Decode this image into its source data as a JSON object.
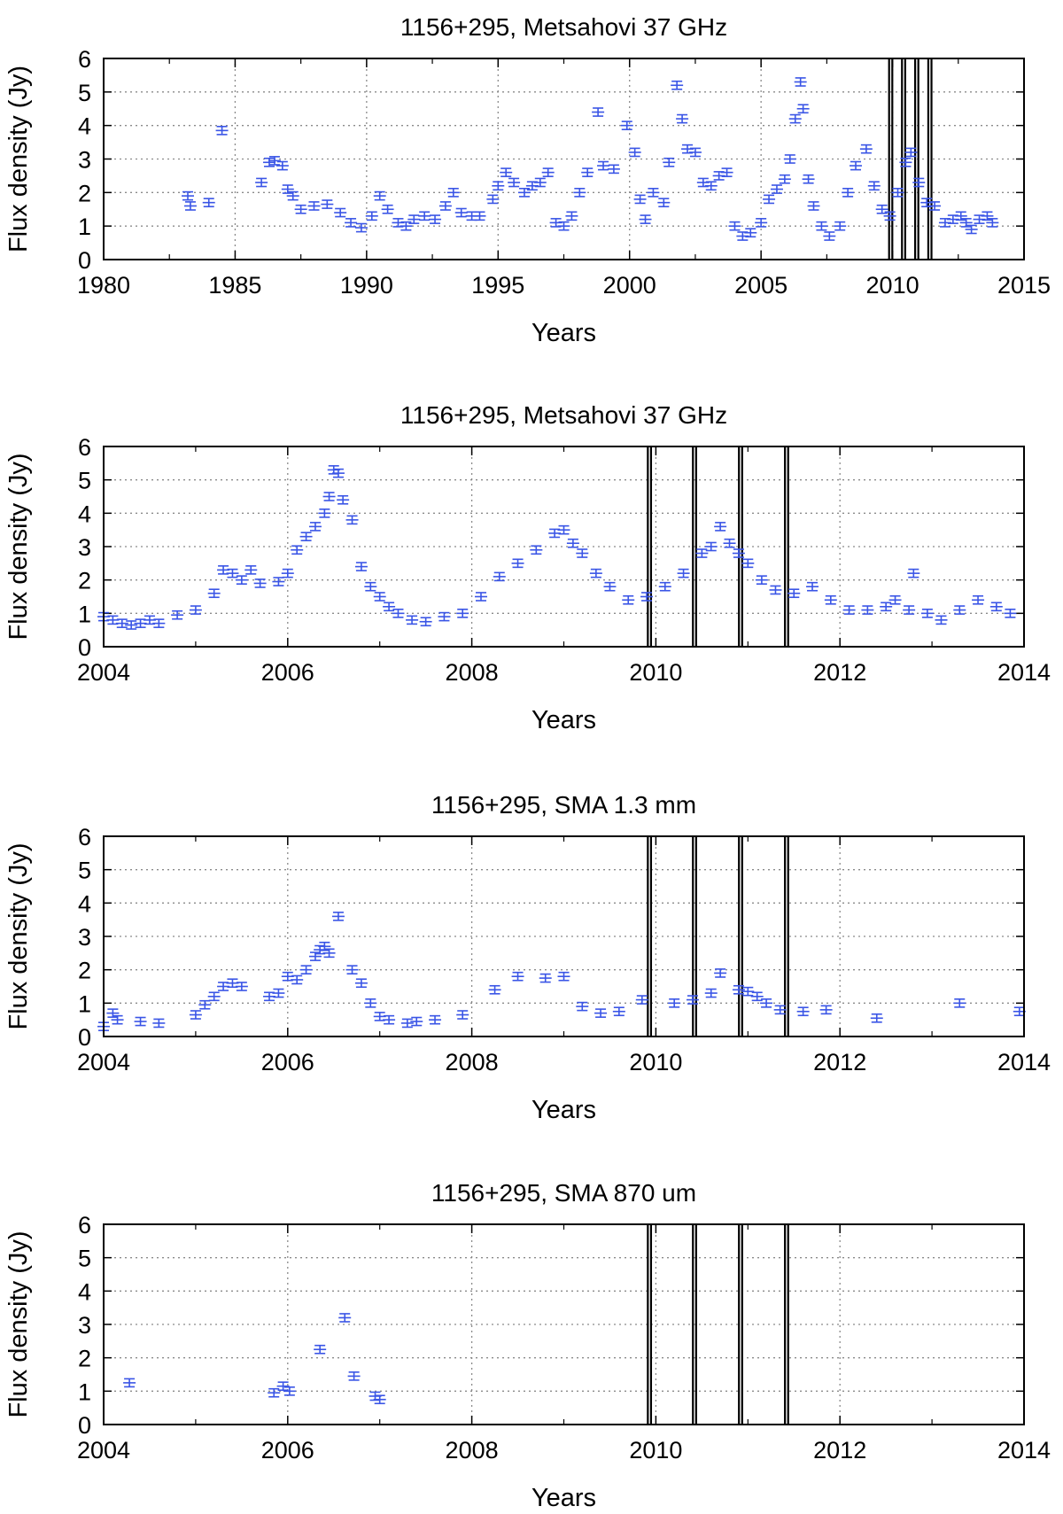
{
  "colors": {
    "data": "#3a55e6",
    "frame": "#000000",
    "grid": "#8a8a8a",
    "marker_lines": "#000000"
  },
  "chart_data": [
    {
      "type": "scatter",
      "title": "1156+295, Metsahovi 37 GHz",
      "xlabel": "Years",
      "ylabel": "Flux density (Jy)",
      "xlim": [
        1980,
        2015
      ],
      "ylim": [
        0,
        6
      ],
      "xticks": [
        "1980",
        "1985",
        "1990",
        "1995",
        "2000",
        "2005",
        "2010",
        "2015"
      ],
      "yticks": [
        "0",
        "1",
        "2",
        "3",
        "4",
        "5",
        "6"
      ],
      "grid": true,
      "error_bars": true,
      "marker_lines_x": [
        2009.93,
        2010.42,
        2010.92,
        2011.42
      ],
      "x": [
        1983.2,
        1983.3,
        1984.0,
        1984.5,
        1986.0,
        1986.3,
        1986.5,
        1986.8,
        1987.0,
        1987.2,
        1987.5,
        1988.0,
        1988.5,
        1989.0,
        1989.4,
        1989.8,
        1990.2,
        1990.5,
        1990.8,
        1991.2,
        1991.5,
        1991.8,
        1992.2,
        1992.6,
        1993.0,
        1993.3,
        1993.6,
        1994.0,
        1994.3,
        1994.8,
        1995.0,
        1995.3,
        1995.6,
        1996.0,
        1996.3,
        1996.6,
        1996.9,
        1997.2,
        1997.5,
        1997.8,
        1998.1,
        1998.4,
        1998.8,
        1999.0,
        1999.4,
        1999.9,
        2000.2,
        2000.4,
        2000.6,
        2000.9,
        2001.3,
        2001.5,
        2001.8,
        2002.0,
        2002.2,
        2002.5,
        2002.8,
        2003.1,
        2003.4,
        2003.7,
        2004.0,
        2004.3,
        2004.6,
        2005.0,
        2005.3,
        2005.6,
        2005.9,
        2006.1,
        2006.3,
        2006.5,
        2006.6,
        2006.8,
        2007.0,
        2007.3,
        2007.6,
        2008.0,
        2008.3,
        2008.6,
        2009.0,
        2009.3,
        2009.6,
        2009.9,
        2010.2,
        2010.5,
        2010.7,
        2011.0,
        2011.3,
        2011.6,
        2012.0,
        2012.3,
        2012.6,
        2012.8,
        2013.0,
        2013.3,
        2013.6,
        2013.8
      ],
      "y": [
        1.9,
        1.6,
        1.7,
        3.85,
        2.3,
        2.9,
        2.95,
        2.8,
        2.1,
        1.9,
        1.5,
        1.6,
        1.65,
        1.4,
        1.1,
        0.95,
        1.3,
        1.9,
        1.5,
        1.1,
        1.0,
        1.2,
        1.3,
        1.2,
        1.6,
        2.0,
        1.4,
        1.3,
        1.3,
        1.8,
        2.2,
        2.6,
        2.3,
        2.0,
        2.2,
        2.3,
        2.6,
        1.1,
        1.0,
        1.3,
        2.0,
        2.6,
        4.4,
        2.8,
        2.7,
        4.0,
        3.2,
        1.8,
        1.2,
        2.0,
        1.7,
        2.9,
        5.2,
        4.2,
        3.3,
        3.2,
        2.3,
        2.2,
        2.5,
        2.6,
        1.0,
        0.7,
        0.8,
        1.1,
        1.8,
        2.1,
        2.4,
        3.0,
        4.2,
        5.3,
        4.5,
        2.4,
        1.6,
        1.0,
        0.7,
        1.0,
        2.0,
        2.8,
        3.3,
        2.2,
        1.5,
        1.3,
        2.0,
        2.9,
        3.2,
        2.3,
        1.7,
        1.6,
        1.1,
        1.2,
        1.3,
        1.1,
        0.9,
        1.2,
        1.3,
        1.1
      ]
    },
    {
      "type": "scatter",
      "title": "1156+295, Metsahovi 37 GHz",
      "xlabel": "Years",
      "ylabel": "Flux density (Jy)",
      "xlim": [
        2004,
        2014
      ],
      "ylim": [
        0,
        6
      ],
      "xticks": [
        "2004",
        "2006",
        "2008",
        "2010",
        "2012",
        "2014"
      ],
      "yticks": [
        "0",
        "1",
        "2",
        "3",
        "4",
        "5",
        "6"
      ],
      "grid": true,
      "error_bars": true,
      "marker_lines_x": [
        2009.93,
        2010.42,
        2010.92,
        2011.42
      ],
      "x": [
        2004.0,
        2004.1,
        2004.2,
        2004.3,
        2004.4,
        2004.5,
        2004.6,
        2004.8,
        2005.0,
        2005.2,
        2005.3,
        2005.4,
        2005.5,
        2005.6,
        2005.7,
        2005.9,
        2006.0,
        2006.1,
        2006.2,
        2006.3,
        2006.4,
        2006.45,
        2006.5,
        2006.55,
        2006.6,
        2006.7,
        2006.8,
        2006.9,
        2007.0,
        2007.1,
        2007.2,
        2007.35,
        2007.5,
        2007.7,
        2007.9,
        2008.1,
        2008.3,
        2008.5,
        2008.7,
        2008.9,
        2009.0,
        2009.1,
        2009.2,
        2009.35,
        2009.5,
        2009.7,
        2009.9,
        2010.1,
        2010.3,
        2010.5,
        2010.6,
        2010.7,
        2010.8,
        2010.9,
        2011.0,
        2011.15,
        2011.3,
        2011.5,
        2011.7,
        2011.9,
        2012.1,
        2012.3,
        2012.5,
        2012.6,
        2012.75,
        2012.8,
        2012.95,
        2013.1,
        2013.3,
        2013.5,
        2013.7,
        2013.85
      ],
      "y": [
        0.9,
        0.8,
        0.7,
        0.65,
        0.7,
        0.8,
        0.7,
        0.95,
        1.1,
        1.6,
        2.3,
        2.2,
        2.0,
        2.3,
        1.9,
        1.95,
        2.2,
        2.9,
        3.3,
        3.6,
        4.0,
        4.5,
        5.3,
        5.2,
        4.4,
        3.8,
        2.4,
        1.8,
        1.5,
        1.2,
        1.0,
        0.8,
        0.75,
        0.9,
        1.0,
        1.5,
        2.1,
        2.5,
        2.9,
        3.4,
        3.5,
        3.1,
        2.8,
        2.2,
        1.8,
        1.4,
        1.5,
        1.8,
        2.2,
        2.8,
        3.0,
        3.6,
        3.1,
        2.8,
        2.5,
        2.0,
        1.7,
        1.6,
        1.8,
        1.4,
        1.1,
        1.1,
        1.2,
        1.4,
        1.1,
        2.2,
        1.0,
        0.8,
        1.1,
        1.4,
        1.2,
        1.0
      ]
    },
    {
      "type": "scatter",
      "title": "1156+295, SMA 1.3 mm",
      "xlabel": "Years",
      "ylabel": "Flux density (Jy)",
      "xlim": [
        2004,
        2014
      ],
      "ylim": [
        0,
        6
      ],
      "xticks": [
        "2004",
        "2006",
        "2008",
        "2010",
        "2012",
        "2014"
      ],
      "yticks": [
        "0",
        "1",
        "2",
        "3",
        "4",
        "5",
        "6"
      ],
      "grid": true,
      "error_bars": true,
      "marker_lines_x": [
        2009.93,
        2010.42,
        2010.92,
        2011.42
      ],
      "x": [
        2004.0,
        2004.1,
        2004.15,
        2004.4,
        2004.6,
        2005.0,
        2005.1,
        2005.2,
        2005.3,
        2005.4,
        2005.5,
        2005.8,
        2005.9,
        2006.0,
        2006.1,
        2006.2,
        2006.3,
        2006.35,
        2006.4,
        2006.45,
        2006.55,
        2006.7,
        2006.8,
        2006.9,
        2007.0,
        2007.1,
        2007.3,
        2007.4,
        2007.6,
        2007.9,
        2008.25,
        2008.5,
        2008.8,
        2009.0,
        2009.2,
        2009.4,
        2009.6,
        2009.85,
        2010.2,
        2010.4,
        2010.6,
        2010.7,
        2010.9,
        2011.0,
        2011.1,
        2011.2,
        2011.35,
        2011.6,
        2011.85,
        2012.4,
        2013.3,
        2013.95
      ],
      "y": [
        0.3,
        0.7,
        0.5,
        0.45,
        0.4,
        0.65,
        0.95,
        1.2,
        1.5,
        1.6,
        1.5,
        1.2,
        1.3,
        1.8,
        1.7,
        2.0,
        2.4,
        2.6,
        2.7,
        2.5,
        3.6,
        2.0,
        1.6,
        1.0,
        0.6,
        0.5,
        0.4,
        0.45,
        0.5,
        0.65,
        1.4,
        1.8,
        1.75,
        1.8,
        0.9,
        0.7,
        0.75,
        1.1,
        1.0,
        1.1,
        1.3,
        1.9,
        1.4,
        1.35,
        1.2,
        1.0,
        0.8,
        0.75,
        0.8,
        0.55,
        1.0,
        0.75
      ]
    },
    {
      "type": "scatter",
      "title": "1156+295, SMA 870 um",
      "xlabel": "Years",
      "ylabel": "Flux density (Jy)",
      "xlim": [
        2004,
        2014
      ],
      "ylim": [
        0,
        6
      ],
      "xticks": [
        "2004",
        "2006",
        "2008",
        "2010",
        "2012",
        "2014"
      ],
      "yticks": [
        "0",
        "1",
        "2",
        "3",
        "4",
        "5",
        "6"
      ],
      "grid": true,
      "error_bars": true,
      "marker_lines_x": [
        2009.93,
        2010.42,
        2010.92,
        2011.42
      ],
      "x": [
        2004.28,
        2005.85,
        2005.95,
        2006.02,
        2006.35,
        2006.62,
        2006.72,
        2006.95,
        2007.0
      ],
      "y": [
        1.25,
        0.95,
        1.15,
        1.0,
        2.25,
        3.2,
        1.45,
        0.85,
        0.75
      ]
    }
  ]
}
